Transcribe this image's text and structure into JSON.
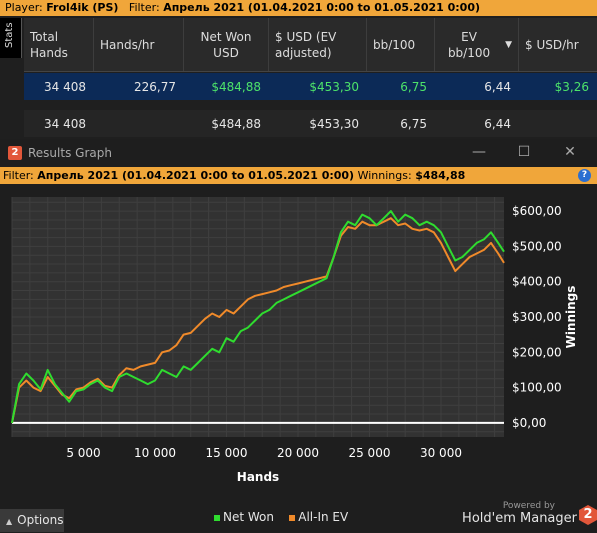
{
  "topbar": {
    "player_label": "Player:",
    "player_value": "Frol4ik (PS)",
    "filter_label": "Filter:",
    "filter_value": "Апрель 2021 (01.04.2021 0:00 to 01.05.2021 0:00)"
  },
  "stats_tab": "Stats",
  "table": {
    "headers": [
      "Total Hands",
      "Hands/hr",
      "Net Won USD",
      "$ USD (EV adjusted)",
      "bb/100",
      "EV bb/100",
      "$ USD/hr"
    ],
    "selected_row": [
      "34 408",
      "226,77",
      "$484,88",
      "$453,30",
      "6,75",
      "6,44",
      "$3,26"
    ],
    "total_row": [
      "34 408",
      "",
      "$484,88",
      "$453,30",
      "6,75",
      "6,44",
      ""
    ]
  },
  "window": {
    "badge": "2",
    "title": "Results Graph",
    "minimize": "—",
    "maximize": "☐",
    "close": "✕"
  },
  "filterbar": {
    "filter_label": "Filter:",
    "filter_value": "Апрель 2021 (01.04.2021 0:00 to 01.05.2021 0:00)",
    "winnings_label": "Winnings:",
    "winnings_value": "$484,88",
    "help": "?"
  },
  "chart_data": {
    "type": "line",
    "xlabel": "Hands",
    "ylabel": "Winnings",
    "xlim": [
      0,
      34408
    ],
    "ylim": [
      -40,
      640
    ],
    "x_ticks": [
      5000,
      10000,
      15000,
      20000,
      25000,
      30000
    ],
    "x_tick_labels": [
      "5 000",
      "10 000",
      "15 000",
      "20 000",
      "25 000",
      "30 000"
    ],
    "y_ticks": [
      0,
      100,
      200,
      300,
      400,
      500,
      600
    ],
    "y_tick_labels": [
      "$0,00",
      "$100,00",
      "$200,00",
      "$300,00",
      "$400,00",
      "$500,00",
      "$600,00"
    ],
    "grid": true,
    "series": [
      {
        "name": "Net Won",
        "color": "#2fdc2f",
        "x": [
          0,
          500,
          1000,
          1500,
          2000,
          2500,
          3000,
          3500,
          4000,
          4500,
          5000,
          5500,
          6000,
          6500,
          7000,
          7500,
          8000,
          8500,
          9000,
          9500,
          10000,
          10500,
          11000,
          11500,
          12000,
          12500,
          13000,
          13500,
          14000,
          14500,
          15000,
          15500,
          16000,
          16500,
          17000,
          17500,
          18000,
          18500,
          19000,
          19500,
          20000,
          20500,
          21000,
          21500,
          22000,
          22500,
          23000,
          23500,
          24000,
          24500,
          25000,
          25500,
          26000,
          26500,
          27000,
          27500,
          28000,
          28500,
          29000,
          29500,
          30000,
          30500,
          31000,
          31500,
          32000,
          32500,
          33000,
          33500,
          34000,
          34408
        ],
        "values": [
          0,
          110,
          140,
          120,
          95,
          150,
          110,
          85,
          60,
          90,
          95,
          110,
          120,
          100,
          90,
          130,
          140,
          130,
          120,
          110,
          120,
          150,
          140,
          130,
          160,
          150,
          170,
          190,
          210,
          200,
          240,
          230,
          260,
          270,
          290,
          310,
          320,
          340,
          350,
          360,
          370,
          380,
          390,
          400,
          410,
          470,
          540,
          570,
          560,
          590,
          580,
          560,
          580,
          600,
          570,
          590,
          580,
          560,
          570,
          560,
          540,
          500,
          460,
          470,
          490,
          510,
          520,
          540,
          510,
          484.88
        ]
      },
      {
        "name": "All-In EV",
        "color": "#f08a2a",
        "x": [
          0,
          500,
          1000,
          1500,
          2000,
          2500,
          3000,
          3500,
          4000,
          4500,
          5000,
          5500,
          6000,
          6500,
          7000,
          7500,
          8000,
          8500,
          9000,
          9500,
          10000,
          10500,
          11000,
          11500,
          12000,
          12500,
          13000,
          13500,
          14000,
          14500,
          15000,
          15500,
          16000,
          16500,
          17000,
          17500,
          18000,
          18500,
          19000,
          19500,
          20000,
          20500,
          21000,
          21500,
          22000,
          22500,
          23000,
          23500,
          24000,
          24500,
          25000,
          25500,
          26000,
          26500,
          27000,
          27500,
          28000,
          28500,
          29000,
          29500,
          30000,
          30500,
          31000,
          31500,
          32000,
          32500,
          33000,
          33500,
          34000,
          34408
        ],
        "values": [
          0,
          100,
          120,
          100,
          90,
          130,
          105,
          80,
          70,
          95,
          100,
          115,
          125,
          105,
          100,
          135,
          155,
          150,
          160,
          165,
          170,
          200,
          205,
          220,
          250,
          255,
          275,
          295,
          310,
          300,
          320,
          310,
          330,
          350,
          360,
          365,
          370,
          375,
          385,
          390,
          395,
          400,
          405,
          410,
          415,
          470,
          530,
          555,
          550,
          570,
          560,
          560,
          570,
          580,
          560,
          565,
          550,
          545,
          550,
          540,
          510,
          470,
          430,
          450,
          470,
          480,
          490,
          510,
          480,
          453.3
        ]
      }
    ]
  },
  "footer": {
    "options_caret": "▲",
    "options_label": "Options",
    "legend": [
      {
        "name": "Net Won",
        "color": "#2fdc2f"
      },
      {
        "name": "All-In EV",
        "color": "#f08a2a"
      }
    ],
    "powered_by": "Powered by",
    "brand_name": "Hold'em Manager",
    "brand_badge": "2"
  }
}
